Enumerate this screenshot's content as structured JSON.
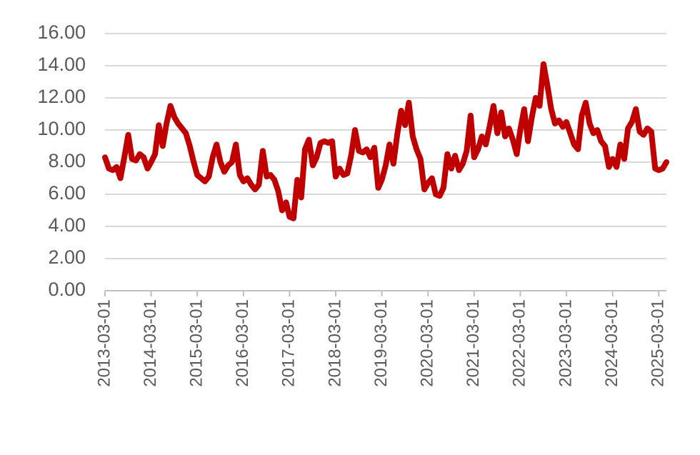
{
  "chart_data": {
    "type": "line",
    "color": "#c00000",
    "grid": true,
    "xlim": [
      "2013-03-01",
      "2025-05-01"
    ],
    "xticks": [
      "2013-03-01",
      "2014-03-01",
      "2015-03-01",
      "2016-03-01",
      "2017-03-01",
      "2018-03-01",
      "2019-03-01",
      "2020-03-01",
      "2021-03-01",
      "2022-03-01",
      "2023-03-01",
      "2024-03-01",
      "2025-03-01"
    ],
    "ylim": [
      0,
      16
    ],
    "yticks": [
      {
        "value": 0,
        "label": "0.00"
      },
      {
        "value": 2,
        "label": "2.00"
      },
      {
        "value": 4,
        "label": "4.00"
      },
      {
        "value": 6,
        "label": "6.00"
      },
      {
        "value": 8,
        "label": "8.00"
      },
      {
        "value": 10,
        "label": "10.00"
      },
      {
        "value": 12,
        "label": "12.00"
      },
      {
        "value": 14,
        "label": "14.00"
      },
      {
        "value": 16,
        "label": "16.00"
      }
    ],
    "x": [
      "2013-03-01",
      "2013-04-01",
      "2013-05-01",
      "2013-06-01",
      "2013-07-01",
      "2013-08-01",
      "2013-09-01",
      "2013-10-01",
      "2013-11-01",
      "2013-12-01",
      "2014-01-01",
      "2014-02-01",
      "2014-03-01",
      "2014-04-01",
      "2014-05-01",
      "2014-06-01",
      "2014-07-01",
      "2014-08-01",
      "2014-09-01",
      "2014-10-01",
      "2014-11-01",
      "2014-12-01",
      "2015-01-01",
      "2015-02-01",
      "2015-03-01",
      "2015-04-01",
      "2015-05-01",
      "2015-06-01",
      "2015-07-01",
      "2015-08-01",
      "2015-09-01",
      "2015-10-01",
      "2015-11-01",
      "2015-12-01",
      "2016-01-01",
      "2016-02-01",
      "2016-03-01",
      "2016-04-01",
      "2016-05-01",
      "2016-06-01",
      "2016-07-01",
      "2016-08-01",
      "2016-09-01",
      "2016-10-01",
      "2016-11-01",
      "2016-12-01",
      "2017-01-01",
      "2017-02-01",
      "2017-03-01",
      "2017-04-01",
      "2017-05-01",
      "2017-06-01",
      "2017-07-01",
      "2017-08-01",
      "2017-09-01",
      "2017-10-01",
      "2017-11-01",
      "2017-12-01",
      "2018-01-01",
      "2018-02-01",
      "2018-03-01",
      "2018-04-01",
      "2018-05-01",
      "2018-06-01",
      "2018-07-01",
      "2018-08-01",
      "2018-09-01",
      "2018-10-01",
      "2018-11-01",
      "2018-12-01",
      "2019-01-01",
      "2019-02-01",
      "2019-03-01",
      "2019-04-01",
      "2019-05-01",
      "2019-06-01",
      "2019-07-01",
      "2019-08-01",
      "2019-09-01",
      "2019-10-01",
      "2019-11-01",
      "2019-12-01",
      "2020-01-01",
      "2020-02-01",
      "2020-03-01",
      "2020-04-01",
      "2020-05-01",
      "2020-06-01",
      "2020-07-01",
      "2020-08-01",
      "2020-09-01",
      "2020-10-01",
      "2020-11-01",
      "2020-12-01",
      "2021-01-01",
      "2021-02-01",
      "2021-03-01",
      "2021-04-01",
      "2021-05-01",
      "2021-06-01",
      "2021-07-01",
      "2021-08-01",
      "2021-09-01",
      "2021-10-01",
      "2021-11-01",
      "2021-12-01",
      "2022-01-01",
      "2022-02-01",
      "2022-03-01",
      "2022-04-01",
      "2022-05-01",
      "2022-06-01",
      "2022-07-01",
      "2022-08-01",
      "2022-09-01",
      "2022-10-01",
      "2022-11-01",
      "2022-12-01",
      "2023-01-01",
      "2023-02-01",
      "2023-03-01",
      "2023-04-01",
      "2023-05-01",
      "2023-06-01",
      "2023-07-01",
      "2023-08-01",
      "2023-09-01",
      "2023-10-01",
      "2023-11-01",
      "2023-12-01",
      "2024-01-01",
      "2024-02-01",
      "2024-03-01",
      "2024-04-01",
      "2024-05-01",
      "2024-06-01",
      "2024-07-01",
      "2024-08-01",
      "2024-09-01",
      "2024-10-01",
      "2024-11-01",
      "2024-12-01",
      "2025-01-01",
      "2025-02-01",
      "2025-03-01",
      "2025-04-01",
      "2025-05-01"
    ],
    "values": [
      8.3,
      7.6,
      7.5,
      7.7,
      7.0,
      8.3,
      9.7,
      8.2,
      8.1,
      8.5,
      8.3,
      7.6,
      8.0,
      8.5,
      10.3,
      9.0,
      10.4,
      11.5,
      10.8,
      10.4,
      10.1,
      9.8,
      9.0,
      8.0,
      7.2,
      7.0,
      6.8,
      7.1,
      8.3,
      9.1,
      8.0,
      7.4,
      7.8,
      8.0,
      9.1,
      7.2,
      6.8,
      7.0,
      6.6,
      6.3,
      6.6,
      8.7,
      7.1,
      7.2,
      6.9,
      6.2,
      5.0,
      5.5,
      4.6,
      4.5,
      6.9,
      5.8,
      8.8,
      9.4,
      7.8,
      8.3,
      9.2,
      9.3,
      9.2,
      9.3,
      7.1,
      7.6,
      7.2,
      7.3,
      8.4,
      10.0,
      8.7,
      8.6,
      8.8,
      8.3,
      8.9,
      6.4,
      6.9,
      7.8,
      9.1,
      7.9,
      9.7,
      11.2,
      10.3,
      11.7,
      9.6,
      8.8,
      8.2,
      6.3,
      6.7,
      7.0,
      6.0,
      5.9,
      6.4,
      8.5,
      7.6,
      8.4,
      7.5,
      7.9,
      8.7,
      10.9,
      8.3,
      8.8,
      9.6,
      9.1,
      10.2,
      11.5,
      9.8,
      11.1,
      9.6,
      10.1,
      9.4,
      8.5,
      10.0,
      11.3,
      9.3,
      10.8,
      12.0,
      11.5,
      14.1,
      12.8,
      11.3,
      10.4,
      10.6,
      10.2,
      10.5,
      9.8,
      9.1,
      8.8,
      10.9,
      11.7,
      10.4,
      9.8,
      10.0,
      9.3,
      9.0,
      7.7,
      8.2,
      7.7,
      9.1,
      8.2,
      10.1,
      10.5,
      11.3,
      9.9,
      9.7,
      10.1,
      9.9,
      7.6,
      7.5,
      7.6,
      8.0
    ]
  }
}
